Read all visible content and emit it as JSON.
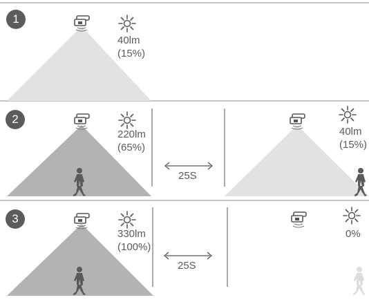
{
  "rows": [
    {
      "number": "1",
      "lamp_left": {
        "lumen": "40lm",
        "percent": "(15%)"
      }
    },
    {
      "number": "2",
      "lamp_left": {
        "lumen": "220lm",
        "percent": "(65%)"
      },
      "delay": "25S",
      "lamp_right": {
        "lumen": "40lm",
        "percent": "(15%)"
      }
    },
    {
      "number": "3",
      "lamp_left": {
        "lumen": "330lm",
        "percent": "(100%)"
      },
      "delay": "25S",
      "lamp_right": {
        "percent": "0%"
      }
    }
  ],
  "colors": {
    "beam_dim": "#e2e2e2",
    "beam_bright": "#b3b3b3",
    "line": "#8a8a8a",
    "badge": "#5c5c5c",
    "person": "#5a5a5a",
    "person_faded": "#dcdcdc"
  },
  "icons": [
    "lamp-sensor-icon",
    "sun-icon",
    "person-icon",
    "double-arrow-icon"
  ]
}
